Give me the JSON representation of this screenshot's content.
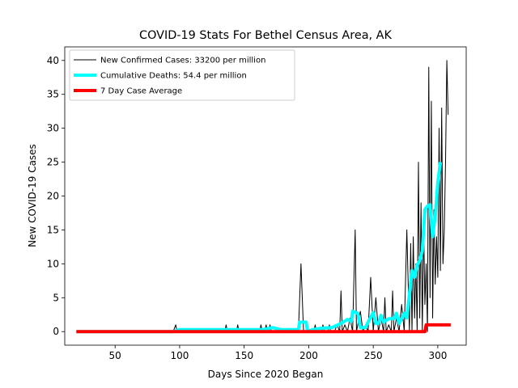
{
  "chart_data": {
    "type": "line",
    "title": "COVID-19 Stats For Bethel Census Area, AK",
    "xlabel": "Days Since 2020 Began",
    "ylabel": "New COVID-19 Cases",
    "xlim": [
      11,
      322
    ],
    "ylim": [
      -2,
      42
    ],
    "xticks": [
      50,
      100,
      150,
      200,
      250,
      300
    ],
    "yticks": [
      0,
      5,
      10,
      15,
      20,
      25,
      30,
      35,
      40
    ],
    "grid": false,
    "legend_position": "top-left",
    "series": [
      {
        "name": "New Confirmed Cases: 33200 per million",
        "color": "#000000",
        "points": [
          [
            20,
            0
          ],
          [
            95,
            0
          ],
          [
            97,
            1
          ],
          [
            98,
            0
          ],
          [
            135,
            0
          ],
          [
            136,
            1
          ],
          [
            137,
            0
          ],
          [
            144,
            0
          ],
          [
            145,
            1
          ],
          [
            146,
            0
          ],
          [
            162,
            0
          ],
          [
            163,
            1
          ],
          [
            164,
            0
          ],
          [
            166,
            0
          ],
          [
            167,
            1
          ],
          [
            168,
            0
          ],
          [
            169,
            0
          ],
          [
            170,
            1
          ],
          [
            171,
            0
          ],
          [
            192,
            0
          ],
          [
            194,
            10
          ],
          [
            196,
            0
          ],
          [
            204,
            0
          ],
          [
            205,
            1
          ],
          [
            206,
            0
          ],
          [
            210,
            0
          ],
          [
            211,
            1
          ],
          [
            212,
            0
          ],
          [
            215,
            0
          ],
          [
            216,
            1
          ],
          [
            217,
            0
          ],
          [
            220,
            0
          ],
          [
            222,
            1
          ],
          [
            224,
            0
          ],
          [
            225,
            6
          ],
          [
            226,
            0
          ],
          [
            228,
            1
          ],
          [
            230,
            0
          ],
          [
            232,
            2
          ],
          [
            234,
            0
          ],
          [
            236,
            15
          ],
          [
            237,
            0
          ],
          [
            240,
            3
          ],
          [
            242,
            0
          ],
          [
            244,
            1
          ],
          [
            246,
            0
          ],
          [
            248,
            8
          ],
          [
            250,
            0
          ],
          [
            252,
            5
          ],
          [
            254,
            0
          ],
          [
            256,
            2
          ],
          [
            258,
            0
          ],
          [
            259,
            5
          ],
          [
            260,
            0
          ],
          [
            262,
            1
          ],
          [
            264,
            0
          ],
          [
            265,
            6
          ],
          [
            266,
            0
          ],
          [
            268,
            2
          ],
          [
            270,
            0
          ],
          [
            272,
            4
          ],
          [
            274,
            0
          ],
          [
            276,
            15
          ],
          [
            278,
            0
          ],
          [
            279,
            13
          ],
          [
            280,
            0
          ],
          [
            281,
            14
          ],
          [
            282,
            2
          ],
          [
            283,
            10
          ],
          [
            284,
            0
          ],
          [
            285,
            25
          ],
          [
            286,
            2
          ],
          [
            287,
            19
          ],
          [
            288,
            0
          ],
          [
            289,
            16
          ],
          [
            290,
            4
          ],
          [
            291,
            10
          ],
          [
            292,
            0
          ],
          [
            293,
            39
          ],
          [
            294,
            5
          ],
          [
            295,
            34
          ],
          [
            296,
            2
          ],
          [
            297,
            18
          ],
          [
            298,
            7
          ],
          [
            299,
            14
          ],
          [
            300,
            8
          ],
          [
            301,
            30
          ],
          [
            302,
            9
          ],
          [
            303,
            33
          ],
          [
            304,
            10
          ],
          [
            305,
            15
          ],
          [
            306,
            25
          ],
          [
            307,
            40
          ],
          [
            308,
            32
          ]
        ]
      },
      {
        "name": "Cumulative Deaths: 54.4 per million",
        "color": "#00ffff",
        "points": [
          [
            20,
            0
          ],
          [
            95,
            0
          ],
          [
            100,
            0.3
          ],
          [
            150,
            0.3
          ],
          [
            165,
            0.3
          ],
          [
            172,
            0.6
          ],
          [
            178,
            0.3
          ],
          [
            192,
            0.3
          ],
          [
            193,
            1.4
          ],
          [
            198,
            1.4
          ],
          [
            199,
            0
          ],
          [
            203,
            0.3
          ],
          [
            210,
            0.5
          ],
          [
            218,
            0.6
          ],
          [
            225,
            1.2
          ],
          [
            230,
            1.8
          ],
          [
            233,
            1.5
          ],
          [
            234,
            3.0
          ],
          [
            238,
            2.7
          ],
          [
            240,
            0.6
          ],
          [
            244,
            0.6
          ],
          [
            246,
            1.4
          ],
          [
            250,
            2.8
          ],
          [
            252,
            1.2
          ],
          [
            254,
            1.2
          ],
          [
            256,
            2.4
          ],
          [
            258,
            1.4
          ],
          [
            262,
            1.9
          ],
          [
            266,
            1.9
          ],
          [
            268,
            2.7
          ],
          [
            270,
            1.2
          ],
          [
            274,
            2.7
          ],
          [
            276,
            2.0
          ],
          [
            280,
            9.0
          ],
          [
            282,
            8.0
          ],
          [
            284,
            9.8
          ],
          [
            286,
            10.5
          ],
          [
            288,
            11.9
          ],
          [
            290,
            18.0
          ],
          [
            292,
            18.5
          ],
          [
            294,
            18.7
          ],
          [
            296,
            14.0
          ],
          [
            298,
            17.0
          ],
          [
            300,
            22.0
          ],
          [
            302,
            25.0
          ]
        ]
      },
      {
        "name": "7 Day Case Average",
        "color": "#ff0000",
        "points": [
          [
            20,
            0
          ],
          [
            290,
            0
          ],
          [
            291,
            1
          ],
          [
            292,
            1
          ],
          [
            310,
            1
          ]
        ]
      }
    ]
  }
}
